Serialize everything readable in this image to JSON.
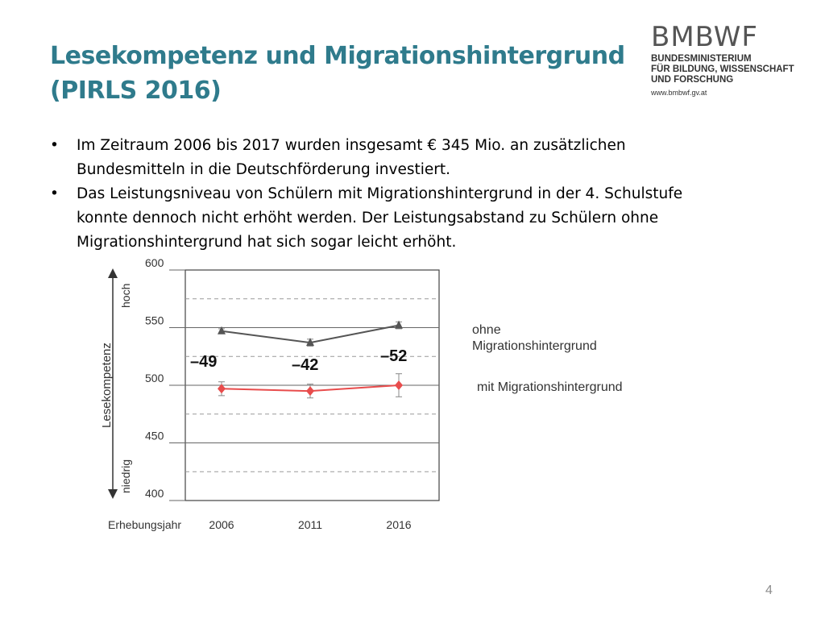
{
  "slide": {
    "title_lines": [
      "Lesekompetenz und Migrationshintergrund",
      "(PIRLS 2016)"
    ],
    "bullets": [
      {
        "bullet": "•",
        "lines": [
          "Im Zeitraum 2006 bis 2017 wurden insgesamt € 345 Mio. an zusätzlichen",
          "Bundesmitteln in die Deutschförderung investiert."
        ]
      },
      {
        "bullet": "•",
        "lines": [
          "Das Leistungsniveau von Schülern mit Migrationshintergrund in der 4. Schulstufe",
          "konnte dennoch nicht erhöht werden. Der Leistungsabstand zu Schülern ohne",
          "Migrationshintergrund hat sich sogar leicht erhöht."
        ]
      }
    ],
    "page_number": "4"
  },
  "logo": {
    "main": "BMBWF",
    "sub_lines": [
      "BUNDESMINISTERIUM",
      "FÜR BILDUNG, WISSENSCHAFT",
      "UND FORSCHUNG"
    ],
    "url": "www.bmbwf.gv.at"
  },
  "chart_data": {
    "type": "line",
    "x": [
      "2006",
      "2011",
      "2016"
    ],
    "xlabel": "Erhebungsjahr",
    "ylabel": "Lesekompetenz",
    "ylim": [
      400,
      600
    ],
    "yticks": [
      400,
      450,
      500,
      550,
      600
    ],
    "dashed_gridlines": [
      425,
      475,
      525,
      575
    ],
    "axis_arrow_labels": {
      "top": "hoch",
      "bottom": "niedrig"
    },
    "series": [
      {
        "name": "ohne Migrationshintergrund",
        "values": [
          547,
          537,
          552
        ],
        "error": [
          2,
          3,
          3
        ],
        "color": "#555555",
        "marker": "triangle"
      },
      {
        "name": "mit Migrationshintergrund",
        "values": [
          497,
          495,
          500
        ],
        "error": [
          6,
          6,
          10
        ],
        "color": "#e84c4c",
        "marker": "diamond"
      }
    ],
    "gap_labels": [
      "–49",
      "–42",
      "–52"
    ],
    "legend": {
      "top_lines": [
        "ohne",
        "Migrationshintergrund"
      ],
      "bottom": "mit Migrationshintergrund"
    },
    "grid": true
  }
}
